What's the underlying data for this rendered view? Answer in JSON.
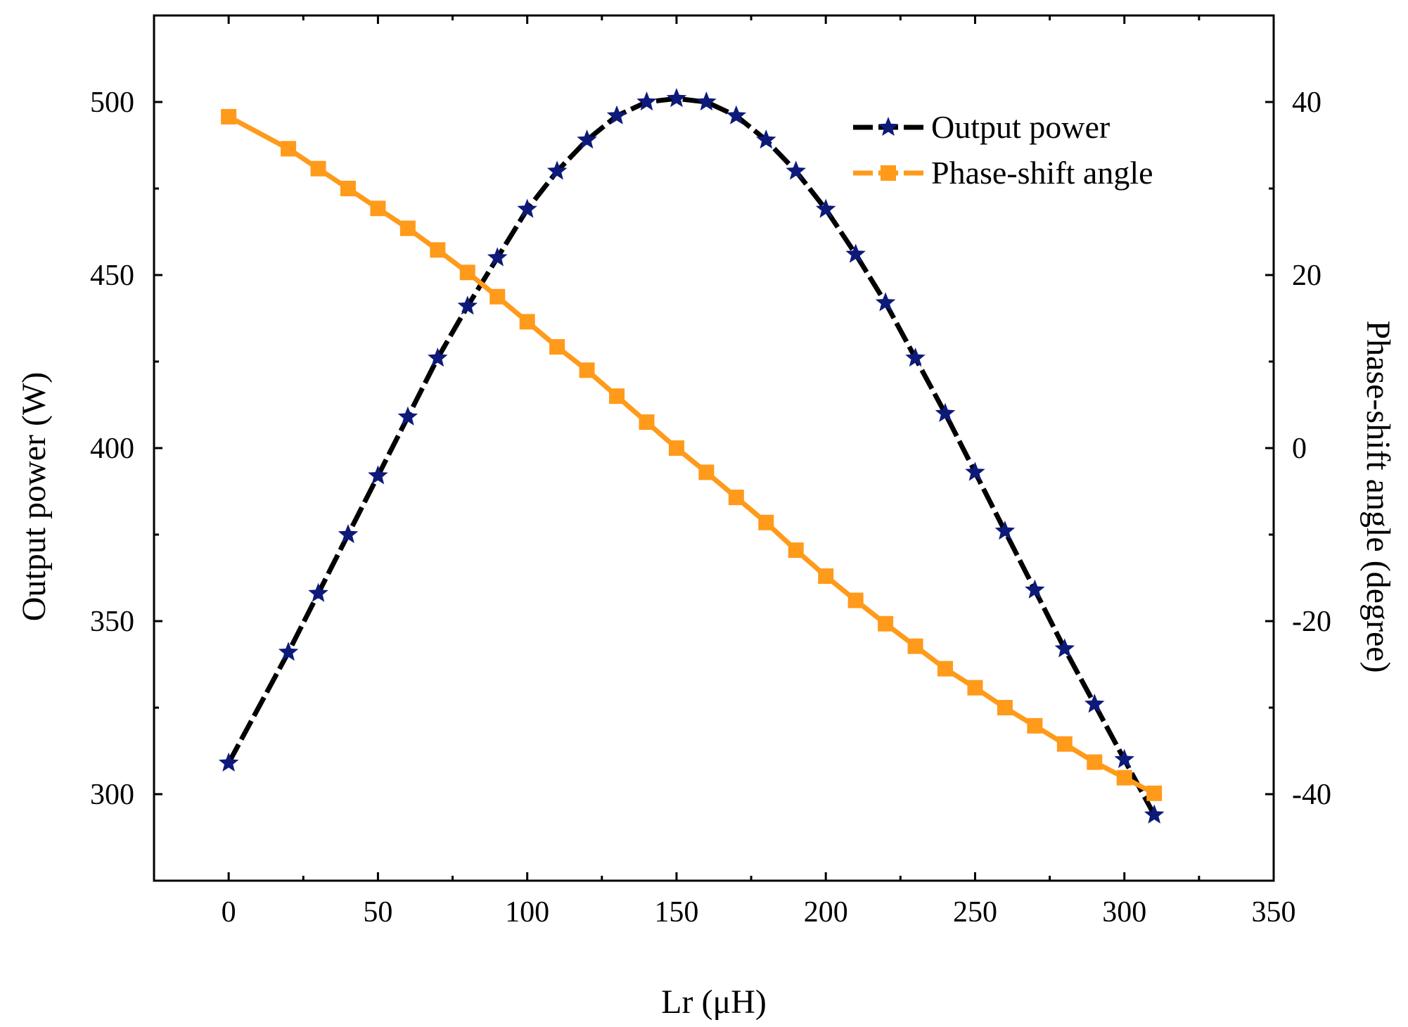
{
  "chart_data": {
    "type": "line",
    "title": "",
    "xlabel": "Lr (μH)",
    "ylabel": "Output power (W)",
    "y2label": "Phase-shift angle (degree)",
    "xlim": [
      -25,
      350
    ],
    "ylim": [
      275,
      525
    ],
    "y2lim": [
      -50,
      50
    ],
    "xticks": [
      0,
      50,
      100,
      150,
      200,
      250,
      300,
      350
    ],
    "yticks": [
      300,
      350,
      400,
      450,
      500
    ],
    "y2ticks": [
      -40,
      -20,
      0,
      20,
      40
    ],
    "grid": false,
    "legend_position": "top-right",
    "series": [
      {
        "name": "Output power",
        "axis": "left",
        "color": "#000000",
        "marker": "star",
        "marker_color": "#0d1a7a",
        "x": [
          0,
          20,
          30,
          40,
          50,
          60,
          70,
          80,
          90,
          100,
          110,
          120,
          130,
          140,
          150,
          160,
          170,
          180,
          190,
          200,
          210,
          220,
          230,
          240,
          250,
          260,
          270,
          280,
          290,
          300,
          310
        ],
        "values": [
          309,
          341,
          358,
          375,
          392,
          409,
          426,
          441,
          455,
          469,
          480,
          489,
          496,
          500,
          501,
          500,
          496,
          489,
          480,
          469,
          456,
          442,
          426,
          410,
          393,
          376,
          359,
          342,
          326,
          310,
          294
        ]
      },
      {
        "name": "Phase-shift angle",
        "axis": "right",
        "color": "#ff9a1a",
        "marker": "square",
        "marker_color": "#ff9a1a",
        "x": [
          0,
          20,
          30,
          40,
          50,
          60,
          70,
          80,
          90,
          100,
          110,
          120,
          130,
          140,
          150,
          160,
          170,
          180,
          190,
          200,
          210,
          220,
          230,
          240,
          250,
          260,
          270,
          280,
          290,
          300,
          310
        ],
        "values": [
          38.3,
          34.6,
          32.3,
          30.0,
          27.7,
          25.4,
          22.9,
          20.3,
          17.5,
          14.6,
          11.7,
          9.0,
          6.0,
          3.0,
          0.0,
          -2.8,
          -5.7,
          -8.6,
          -11.8,
          -14.8,
          -17.6,
          -20.3,
          -22.9,
          -25.5,
          -27.7,
          -30.0,
          -32.1,
          -34.2,
          -36.3,
          -38.1,
          -39.9
        ]
      }
    ]
  },
  "colors": {
    "axis": "#000000",
    "power_line": "#000000",
    "power_marker": "#0d1a7a",
    "phase": "#ff9a1a"
  }
}
